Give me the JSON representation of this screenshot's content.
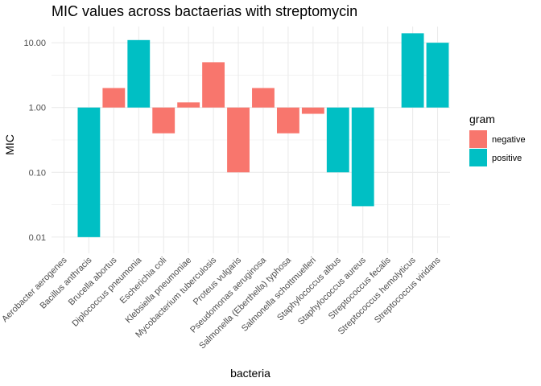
{
  "chart_data": {
    "type": "bar",
    "title": "MIC values across bactaerias with streptomycin",
    "xlabel": "bacteria",
    "ylabel": "MIC",
    "y_scale": "log10",
    "y_baseline": 1.0,
    "ylim": [
      0.01,
      10.0
    ],
    "y_ticks": [
      0.01,
      0.1,
      1.0,
      10.0
    ],
    "y_tick_labels": [
      "0.01",
      "0.10",
      "1.00",
      "10.00"
    ],
    "grid": true,
    "legend": {
      "title": "gram",
      "position": "right",
      "entries": [
        {
          "name": "negative",
          "color": "#F8766D"
        },
        {
          "name": "positive",
          "color": "#00BFC4"
        }
      ]
    },
    "categories": [
      "Aerobacter aerogenes",
      "Bacillus anthracis",
      "Brucella abortus",
      "Diplococcus pneumonia",
      "Escherichia coli",
      "Klebsiella pneumoniae",
      "Mycobacterium tuberculosis",
      "Proteus vulgaris",
      "Pseudomonas aeruginosa",
      "Salmonella (Eberthella) typhosa",
      "Salmonella schottmuelleri",
      "Staphylococcus albus",
      "Staphylococcus aureus",
      "Streptococcus fecalis",
      "Streptococcus hemolyticus",
      "Streptococcus viridans"
    ],
    "values": [
      1.0,
      0.01,
      2.0,
      11.0,
      0.4,
      1.2,
      5.0,
      0.1,
      2.0,
      0.4,
      0.8,
      0.1,
      0.03,
      1.0,
      14.0,
      10.0
    ],
    "gram": [
      "negative",
      "positive",
      "negative",
      "positive",
      "negative",
      "negative",
      "negative",
      "negative",
      "negative",
      "negative",
      "negative",
      "positive",
      "positive",
      "positive",
      "positive",
      "positive"
    ]
  }
}
